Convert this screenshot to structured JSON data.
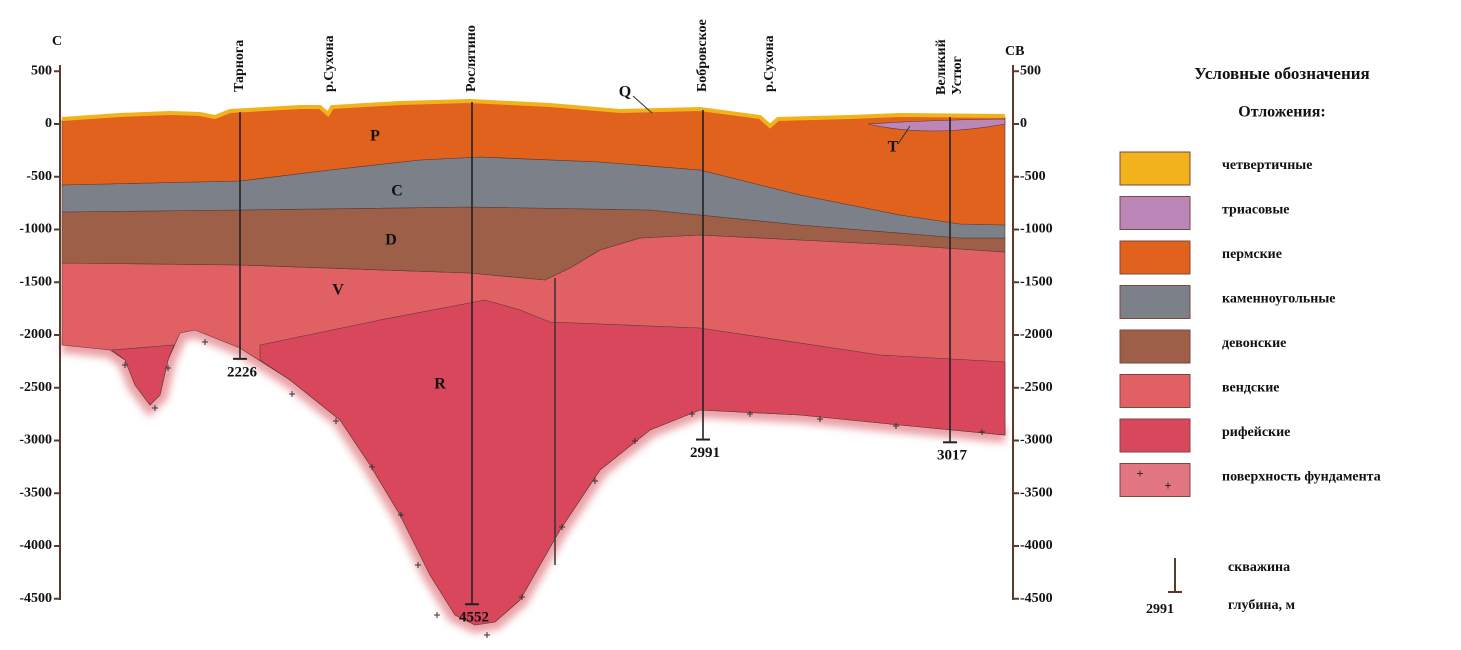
{
  "header": {
    "title": "Условные обозначения",
    "subtitle": "Отложения:"
  },
  "axis": {
    "left_label": "С",
    "right_label": "СВ",
    "ticks": [
      500,
      0,
      -500,
      -1000,
      -1500,
      -2000,
      -2500,
      -3000,
      -3500,
      -4000,
      -4500
    ]
  },
  "places": [
    {
      "label": "Тарнога",
      "depth": 2226
    },
    {
      "label": "р.Сухона"
    },
    {
      "label": "Рослятино",
      "depth": 4552
    },
    {
      "label": "Бобровское",
      "depth": 2991
    },
    {
      "label": "р.Сухона"
    },
    {
      "lines": [
        "Великий",
        "Устюг"
      ],
      "depth": 3017
    }
  ],
  "layer_labels": [
    "P",
    "C",
    "D",
    "V",
    "R",
    "T",
    "Q"
  ],
  "legend": {
    "items": [
      {
        "label": "четвертичные",
        "color": "#f2b21c"
      },
      {
        "label": "триасовые",
        "color": "#bb86b8"
      },
      {
        "label": "пермские",
        "color": "#e0621c"
      },
      {
        "label": "каменноугольные",
        "color": "#7b8089"
      },
      {
        "label": "девонские",
        "color": "#9d5f47"
      },
      {
        "label": "вендские",
        "color": "#e06063"
      },
      {
        "label": "рифейские",
        "color": "#d9475c"
      },
      {
        "label": "поверхность фундамента",
        "color": "#e27683"
      }
    ],
    "well": {
      "label": "скважина"
    },
    "depth": {
      "value": 2991,
      "label": "глубина, м"
    }
  }
}
